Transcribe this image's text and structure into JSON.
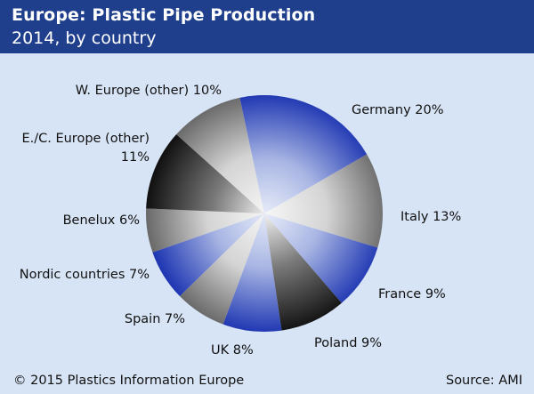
{
  "header": {
    "title": "Europe: Plastic Pipe Production",
    "subtitle": "2014, by country"
  },
  "footer": {
    "copyright": "© 2015 Plastics Information Europe",
    "source": "Source: AMI"
  },
  "colors": {
    "background": "#d7e4f5",
    "header": "#1f3f8c",
    "blue": "#2a44b8",
    "black": "#111111",
    "gray": "#6a6a6a"
  },
  "chart_data": {
    "type": "pie",
    "title": "Europe: Plastic Pipe Production",
    "subtitle": "2014, by country",
    "unit": "%",
    "slices": [
      {
        "name": "Germany",
        "value": 20,
        "label": "Germany 20%",
        "tone": "blue"
      },
      {
        "name": "Italy",
        "value": 13,
        "label": "Italy 13%",
        "tone": "gray"
      },
      {
        "name": "France",
        "value": 9,
        "label": "France 9%",
        "tone": "blue"
      },
      {
        "name": "Poland",
        "value": 9,
        "label": "Poland 9%",
        "tone": "black"
      },
      {
        "name": "UK",
        "value": 8,
        "label": "UK 8%",
        "tone": "blue"
      },
      {
        "name": "Spain",
        "value": 7,
        "label": "Spain 7%",
        "tone": "gray"
      },
      {
        "name": "Nordic countries",
        "value": 7,
        "label": "Nordic countries 7%",
        "tone": "blue"
      },
      {
        "name": "Benelux",
        "value": 6,
        "label": "Benelux 6%",
        "tone": "gray"
      },
      {
        "name": "E./C. Europe (other)",
        "value": 11,
        "label": [
          "E./C. Europe (other)",
          "11%"
        ],
        "tone": "black"
      },
      {
        "name": "W. Europe (other)",
        "value": 10,
        "label": "W. Europe (other) 10%",
        "tone": "gray"
      }
    ]
  }
}
